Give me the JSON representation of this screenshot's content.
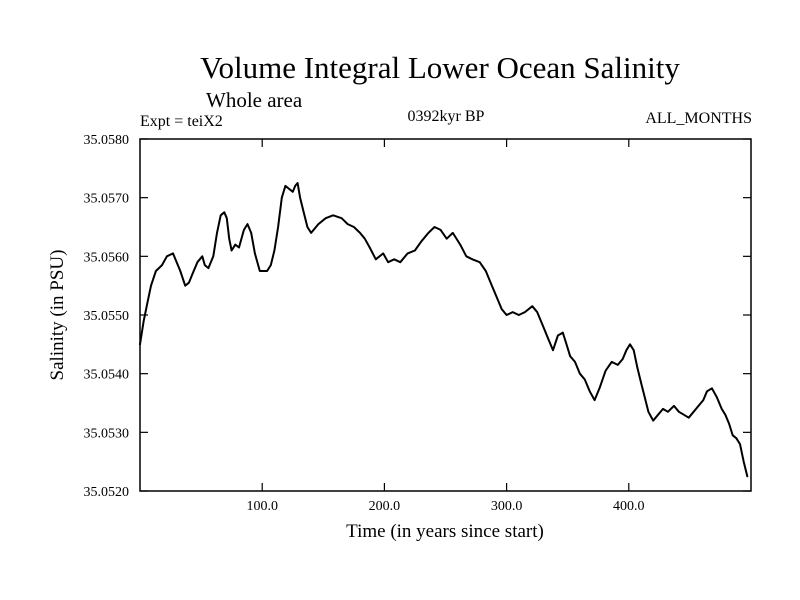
{
  "chart": {
    "title": "Volume Integral Lower Ocean Salinity",
    "subtitle": "Whole area",
    "left_label": "Expt = teiX2",
    "center_label": "0392kyr BP",
    "right_label": "ALL_MONTHS"
  },
  "chart_data": {
    "type": "line",
    "title": "Volume Integral Lower Ocean Salinity",
    "subtitle": "Whole area",
    "annotations": [
      "Expt = teiX2",
      "0392kyr BP",
      "ALL_MONTHS"
    ],
    "xlabel": "Time (in years since start)",
    "ylabel": "Salinity (in PSU)",
    "xlim": [
      0,
      500
    ],
    "ylim": [
      35.052,
      35.058
    ],
    "x_ticks": [
      100,
      200,
      300,
      400
    ],
    "x_tick_labels": [
      "100.0",
      "200.0",
      "300.0",
      "400.0"
    ],
    "y_ticks": [
      35.052,
      35.053,
      35.054,
      35.055,
      35.056,
      35.057,
      35.058
    ],
    "y_tick_labels": [
      "35.0520",
      "35.0530",
      "35.0540",
      "35.0550",
      "35.0560",
      "35.0570",
      "35.0580"
    ],
    "grid": false,
    "series": [
      {
        "color": "#000000",
        "x": [
          0,
          3,
          6,
          9,
          13,
          18,
          22,
          27,
          33,
          37,
          40,
          43,
          47,
          51,
          53,
          56,
          60,
          63,
          66,
          69,
          71,
          73,
          75,
          78,
          81,
          85,
          88,
          91,
          94,
          98,
          101,
          104,
          107,
          110,
          113,
          116,
          119,
          122,
          125,
          127,
          129,
          131,
          134,
          137,
          140,
          146,
          152,
          158,
          165,
          170,
          175,
          180,
          184,
          188,
          193,
          199,
          203,
          208,
          213,
          219,
          225,
          230,
          236,
          241,
          246,
          251,
          256,
          262,
          267,
          272,
          278,
          283,
          288,
          292,
          296,
          300,
          305,
          310,
          315,
          321,
          325,
          330,
          334,
          338,
          342,
          346,
          349,
          352,
          356,
          360,
          364,
          368,
          372,
          376,
          381,
          386,
          391,
          395,
          398,
          401,
          404,
          407,
          410,
          413,
          416,
          420,
          424,
          428,
          432,
          437,
          441,
          445,
          449,
          453,
          457,
          461,
          464,
          468,
          472,
          476,
          479,
          482,
          485,
          488,
          491,
          494,
          497
        ],
        "y": [
          35.0545,
          35.0549,
          35.0552,
          35.0555,
          35.05575,
          35.05585,
          35.056,
          35.05605,
          35.05575,
          35.0555,
          35.05555,
          35.0557,
          35.0559,
          35.056,
          35.05585,
          35.0558,
          35.056,
          35.0564,
          35.0567,
          35.05675,
          35.05665,
          35.0563,
          35.0561,
          35.0562,
          35.05615,
          35.05645,
          35.05655,
          35.0564,
          35.05605,
          35.05575,
          35.05575,
          35.05575,
          35.05585,
          35.0561,
          35.0565,
          35.057,
          35.0572,
          35.05715,
          35.0571,
          35.0572,
          35.05725,
          35.057,
          35.05675,
          35.0565,
          35.0564,
          35.05655,
          35.05665,
          35.0567,
          35.05665,
          35.05655,
          35.0565,
          35.0564,
          35.0563,
          35.05615,
          35.05595,
          35.05605,
          35.0559,
          35.05595,
          35.0559,
          35.05605,
          35.0561,
          35.05625,
          35.0564,
          35.0565,
          35.05645,
          35.0563,
          35.0564,
          35.0562,
          35.056,
          35.05595,
          35.0559,
          35.05575,
          35.0555,
          35.0553,
          35.0551,
          35.055,
          35.05505,
          35.055,
          35.05505,
          35.05515,
          35.05505,
          35.0548,
          35.0546,
          35.0544,
          35.05465,
          35.0547,
          35.0545,
          35.0543,
          35.0542,
          35.054,
          35.0539,
          35.0537,
          35.05355,
          35.05375,
          35.05405,
          35.0542,
          35.05415,
          35.05425,
          35.0544,
          35.0545,
          35.0544,
          35.0541,
          35.05385,
          35.0536,
          35.05335,
          35.0532,
          35.0533,
          35.0534,
          35.05335,
          35.05345,
          35.05335,
          35.0533,
          35.05325,
          35.05335,
          35.05345,
          35.05355,
          35.0537,
          35.05375,
          35.0536,
          35.0534,
          35.0533,
          35.05315,
          35.05295,
          35.0529,
          35.0528,
          35.0525,
          35.05225
        ]
      }
    ]
  }
}
